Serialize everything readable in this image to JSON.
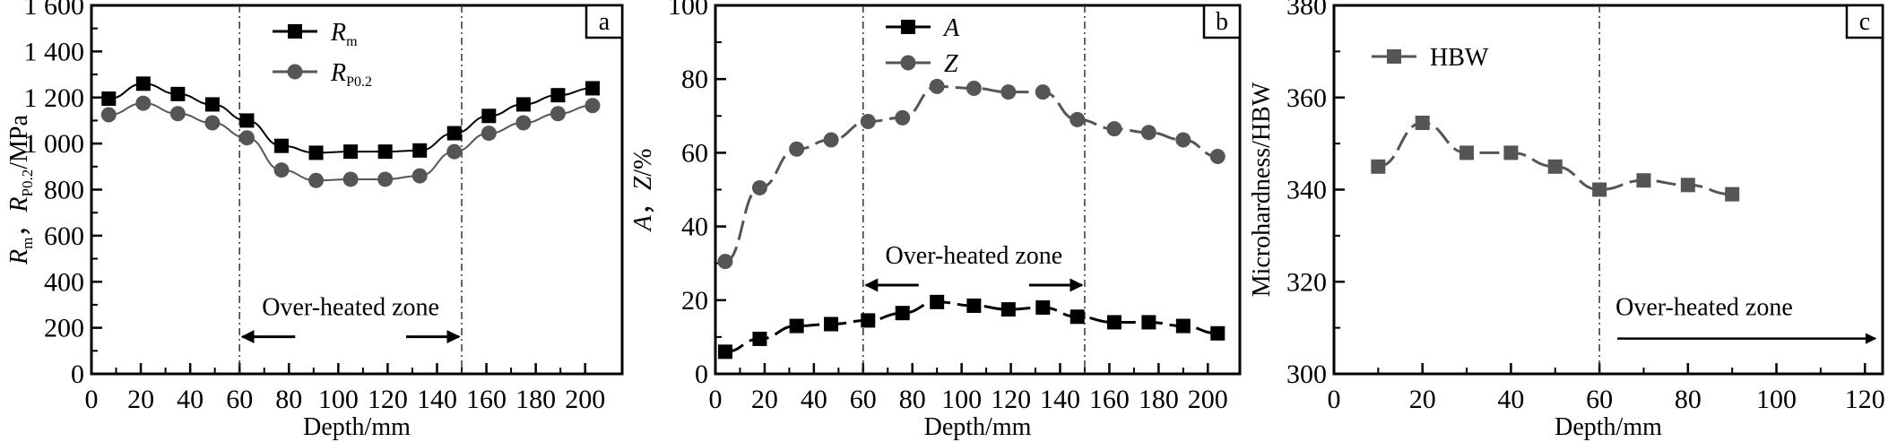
{
  "chart_data": [
    {
      "type": "line",
      "panel_label": "a",
      "xlabel": "Depth/mm",
      "ylabel": "R_m, R_P0.2/MPa",
      "ylabel_parts": [
        "R",
        "m",
        "，",
        "R",
        "P0.2",
        "/MPa"
      ],
      "xlim": [
        0,
        215
      ],
      "ylim": [
        0,
        1600
      ],
      "xticks": [
        0,
        20,
        40,
        60,
        80,
        100,
        120,
        140,
        160,
        180,
        200
      ],
      "yticks": [
        0,
        200,
        400,
        600,
        800,
        1000,
        1200,
        1400,
        1600
      ],
      "ytick_labels": [
        "0",
        "200",
        "400",
        "600",
        "800",
        "1 000",
        "1 200",
        "1 400",
        "1 600"
      ],
      "vlines": [
        60,
        150
      ],
      "annotation": {
        "text": "Over-heated zone",
        "arrows": "both-outward"
      },
      "legend_position": "top-center",
      "series": [
        {
          "name": "Rm",
          "name_main": "R",
          "name_sub": "m",
          "marker": "square",
          "color": "#000000",
          "x": [
            7,
            21,
            35,
            49,
            63,
            77,
            91,
            105,
            119,
            133,
            147,
            161,
            175,
            189,
            203
          ],
          "y": [
            1195,
            1260,
            1215,
            1170,
            1100,
            990,
            960,
            965,
            965,
            970,
            1045,
            1120,
            1170,
            1210,
            1240
          ]
        },
        {
          "name": "RP0.2",
          "name_main": "R",
          "name_sub": "P0.2",
          "marker": "circle",
          "color": "#555555",
          "x": [
            7,
            21,
            35,
            49,
            63,
            77,
            91,
            105,
            119,
            133,
            147,
            161,
            175,
            189,
            203
          ],
          "y": [
            1125,
            1175,
            1130,
            1090,
            1025,
            885,
            840,
            845,
            845,
            860,
            965,
            1045,
            1090,
            1130,
            1165
          ]
        }
      ]
    },
    {
      "type": "line",
      "panel_label": "b",
      "xlabel": "Depth/mm",
      "ylabel": "A, Z/%",
      "ylabel_parts": [
        "A",
        "，",
        "Z",
        "/%"
      ],
      "xlim": [
        0,
        213
      ],
      "ylim": [
        0,
        100
      ],
      "xticks": [
        0,
        20,
        40,
        60,
        80,
        100,
        120,
        140,
        160,
        180,
        200
      ],
      "yticks": [
        0,
        20,
        40,
        60,
        80,
        100
      ],
      "ytick_labels": [
        "0",
        "20",
        "40",
        "60",
        "80",
        "100"
      ],
      "vlines": [
        60,
        150
      ],
      "annotation": {
        "text": "Over-heated zone",
        "arrows": "both-outward"
      },
      "legend_position": "top-center",
      "series": [
        {
          "name": "A",
          "name_main": "A",
          "name_sub": "",
          "marker": "square",
          "color": "#000000",
          "dashed": true,
          "x": [
            4,
            18,
            33,
            47,
            62,
            76,
            90,
            105,
            119,
            133,
            147,
            162,
            176,
            190,
            204
          ],
          "y": [
            6,
            9.5,
            13,
            13.5,
            14.5,
            16.5,
            19.5,
            18.5,
            17.5,
            18,
            15.5,
            14,
            14,
            13,
            11
          ]
        },
        {
          "name": "Z",
          "name_main": "Z",
          "name_sub": "",
          "marker": "circle",
          "color": "#555555",
          "dashed": true,
          "x": [
            4,
            18,
            33,
            47,
            62,
            76,
            90,
            105,
            119,
            133,
            147,
            162,
            176,
            190,
            204
          ],
          "y": [
            30.5,
            50.5,
            61,
            63.5,
            68.5,
            69.5,
            78,
            77.5,
            76.5,
            76.5,
            69,
            66.5,
            65.5,
            63.5,
            59
          ]
        }
      ]
    },
    {
      "type": "line",
      "panel_label": "c",
      "xlabel": "Depth/mm",
      "ylabel": "Microhardness/HBW",
      "xlim": [
        0,
        124
      ],
      "ylim": [
        300,
        380
      ],
      "xticks": [
        0,
        20,
        40,
        60,
        80,
        100,
        120
      ],
      "yticks": [
        300,
        320,
        340,
        360,
        380
      ],
      "ytick_labels": [
        "300",
        "320",
        "340",
        "360",
        "380"
      ],
      "vlines": [
        60
      ],
      "annotation": {
        "text": "Over-heated zone",
        "arrows": "right"
      },
      "legend_position": "top-left",
      "series": [
        {
          "name": "HBW",
          "name_main": "HBW",
          "name_sub": "",
          "marker": "square",
          "color": "#555555",
          "dashed": true,
          "x": [
            10,
            20,
            30,
            40,
            50,
            60,
            70,
            80,
            90
          ],
          "y": [
            345,
            354.5,
            348,
            348,
            345,
            340,
            342,
            341,
            339
          ]
        }
      ]
    }
  ]
}
